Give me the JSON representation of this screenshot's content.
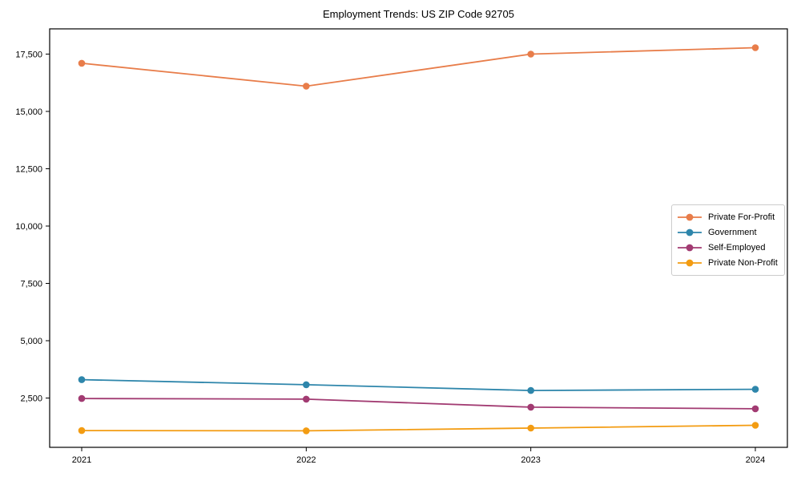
{
  "figure": {
    "title": "Employment Trends: US ZIP Code 92705"
  },
  "chart_data": {
    "type": "line",
    "title": "Employment Trends: US ZIP Code 92705",
    "xlabel": "",
    "ylabel": "",
    "x": [
      "2021",
      "2022",
      "2023",
      "2024"
    ],
    "series": [
      {
        "name": "Private For-Profit",
        "color": "#E87D4A",
        "values": [
          17100,
          16100,
          17500,
          17780
        ]
      },
      {
        "name": "Government",
        "color": "#2E86AB",
        "values": [
          3300,
          3080,
          2830,
          2880
        ]
      },
      {
        "name": "Self-Employed",
        "color": "#A23B72",
        "values": [
          2480,
          2450,
          2100,
          2030
        ]
      },
      {
        "name": "Private Non-Profit",
        "color": "#F39C12",
        "values": [
          1080,
          1070,
          1190,
          1310
        ]
      }
    ],
    "ylim": [
      350,
      18600
    ],
    "yticks": {
      "values": [
        2500,
        5000,
        7500,
        10000,
        12500,
        15000,
        17500
      ],
      "labels": [
        "2,500",
        "5,000",
        "7,500",
        "10,000",
        "12,500",
        "15,000",
        "17,500"
      ]
    },
    "grid": false,
    "legend_position": "center-right",
    "marker": "circle",
    "axis_color": "#000000"
  }
}
